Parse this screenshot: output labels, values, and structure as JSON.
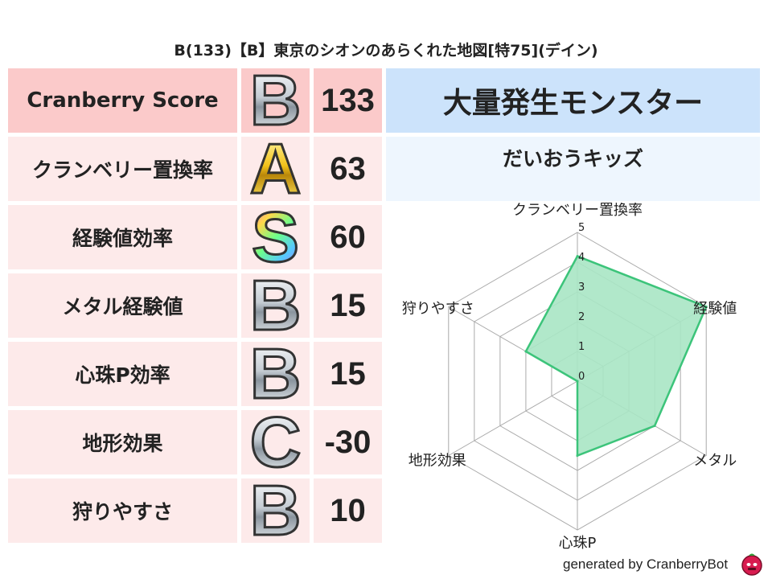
{
  "title": "B(133)【B】東京のシオンのあらくれた地図[特75](デイン)",
  "score_table": {
    "header": {
      "label": "Cranberry Score",
      "grade": "B",
      "value": "133"
    },
    "rows": [
      {
        "label": "クランベリー置換率",
        "grade": "A",
        "value": "63"
      },
      {
        "label": "経験値効率",
        "grade": "S",
        "value": "60"
      },
      {
        "label": "メタル経験値",
        "grade": "B",
        "value": "15"
      },
      {
        "label": "心珠P効率",
        "grade": "B",
        "value": "15"
      },
      {
        "label": "地形効果",
        "grade": "C",
        "value": "-30"
      },
      {
        "label": "狩りやすさ",
        "grade": "B",
        "value": "10"
      }
    ]
  },
  "monster": {
    "header": "大量発生モンスター",
    "name": "だいおうキッズ"
  },
  "chart_data": {
    "type": "radar",
    "axes": [
      "クランベリー置換率",
      "経験値",
      "メタル",
      "心珠P",
      "地形効果",
      "狩りやすさ"
    ],
    "values": [
      4.2,
      5,
      3,
      2.5,
      0,
      2
    ],
    "rlim": [
      0,
      5
    ],
    "ticks": [
      "0",
      "1",
      "2",
      "3",
      "4",
      "5"
    ],
    "fill_color": "#a9e6c4",
    "line_color": "#3cc47a",
    "grid": true
  },
  "footer": {
    "text": "generated by CranberryBot",
    "icon": "cranberry-robot-icon"
  }
}
